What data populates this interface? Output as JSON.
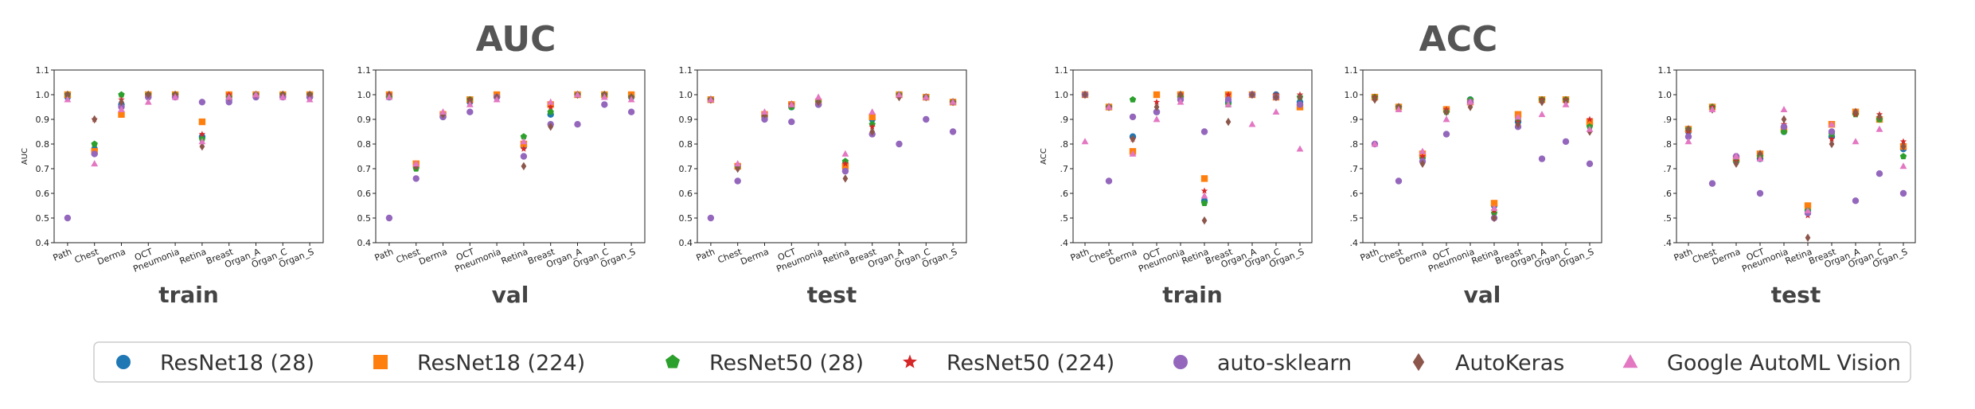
{
  "group_titles": [
    "AUC",
    "ACC"
  ],
  "datasets": [
    "Path",
    "Chest",
    "Derma",
    "OCT",
    "Pneumonia",
    "Retina",
    "Breast",
    "Organ_A",
    "Organ_C",
    "Organ_S"
  ],
  "models": [
    {
      "name": "ResNet18 (28)",
      "color": "#1f77b4",
      "marker": "circle"
    },
    {
      "name": "ResNet18 (224)",
      "color": "#ff7f0e",
      "marker": "square"
    },
    {
      "name": "ResNet50 (28)",
      "color": "#2ca02c",
      "marker": "pentagon"
    },
    {
      "name": "ResNet50 (224)",
      "color": "#d62728",
      "marker": "star"
    },
    {
      "name": "auto-sklearn",
      "color": "#9467bd",
      "marker": "circle"
    },
    {
      "name": "AutoKeras",
      "color": "#8c564b",
      "marker": "diamond"
    },
    {
      "name": "Google AutoML Vision",
      "color": "#e377c2",
      "marker": "triangle"
    }
  ],
  "chart_data": [
    {
      "type": "scatter",
      "group": "AUC",
      "title": "train",
      "ylabel": "AUC",
      "ylim": [
        0.4,
        1.1
      ],
      "yticks": [
        "0.4",
        "0.5",
        "0.6",
        "0.7",
        "0.8",
        "0.9",
        "1.0",
        "1.1"
      ],
      "series": [
        {
          "name": "ResNet18 (28)",
          "values": [
            0.99,
            0.78,
            0.96,
            1.0,
            1.0,
            0.83,
            0.98,
            1.0,
            1.0,
            0.99
          ]
        },
        {
          "name": "ResNet18 (224)",
          "values": [
            1.0,
            0.77,
            0.92,
            1.0,
            1.0,
            0.89,
            1.0,
            1.0,
            1.0,
            1.0
          ]
        },
        {
          "name": "ResNet50 (28)",
          "values": [
            1.0,
            0.8,
            1.0,
            1.0,
            1.0,
            0.82,
            0.99,
            1.0,
            1.0,
            1.0
          ]
        },
        {
          "name": "ResNet50 (224)",
          "values": [
            1.0,
            0.9,
            0.98,
            1.0,
            1.0,
            0.84,
            1.0,
            1.0,
            1.0,
            1.0
          ]
        },
        {
          "name": "auto-sklearn",
          "values": [
            0.5,
            0.76,
            0.95,
            0.99,
            0.99,
            0.97,
            0.97,
            0.99,
            0.99,
            0.99
          ]
        },
        {
          "name": "AutoKeras",
          "values": [
            1.0,
            0.9,
            0.97,
            1.0,
            1.0,
            0.79,
            0.99,
            1.0,
            1.0,
            1.0
          ]
        },
        {
          "name": "Google AutoML Vision",
          "values": [
            0.98,
            0.72,
            0.94,
            0.97,
            0.99,
            0.81,
            0.99,
            1.0,
            0.99,
            0.98
          ]
        }
      ]
    },
    {
      "type": "scatter",
      "group": "AUC",
      "title": "val",
      "ylabel": "",
      "ylim": [
        0.4,
        1.1
      ],
      "yticks": [
        "0.4",
        "0.5",
        "0.6",
        "0.7",
        "0.8",
        "0.9",
        "1.0",
        "1.1"
      ],
      "series": [
        {
          "name": "ResNet18 (28)",
          "values": [
            0.99,
            0.71,
            0.91,
            0.97,
            0.99,
            0.79,
            0.92,
            1.0,
            1.0,
            0.99
          ]
        },
        {
          "name": "ResNet18 (224)",
          "values": [
            1.0,
            0.72,
            0.92,
            0.98,
            1.0,
            0.8,
            0.96,
            1.0,
            1.0,
            1.0
          ]
        },
        {
          "name": "ResNet50 (28)",
          "values": [
            0.99,
            0.7,
            0.92,
            0.98,
            0.99,
            0.83,
            0.93,
            1.0,
            1.0,
            0.99
          ]
        },
        {
          "name": "ResNet50 (224)",
          "values": [
            1.0,
            0.71,
            0.91,
            0.98,
            0.99,
            0.78,
            0.95,
            1.0,
            1.0,
            0.99
          ]
        },
        {
          "name": "auto-sklearn",
          "values": [
            0.5,
            0.66,
            0.91,
            0.93,
            0.99,
            0.75,
            0.88,
            0.88,
            0.96,
            0.93
          ]
        },
        {
          "name": "AutoKeras",
          "values": [
            1.0,
            0.71,
            0.92,
            0.97,
            0.99,
            0.71,
            0.87,
            1.0,
            1.0,
            0.99
          ]
        },
        {
          "name": "Google AutoML Vision",
          "values": [
            0.99,
            0.72,
            0.93,
            0.96,
            0.98,
            0.81,
            0.97,
            1.0,
            0.99,
            0.98
          ]
        }
      ]
    },
    {
      "type": "scatter",
      "group": "AUC",
      "title": "test",
      "ylabel": "",
      "ylim": [
        0.4,
        1.1
      ],
      "yticks": [
        "0.4",
        "0.5",
        "0.6",
        "0.7",
        "0.8",
        "0.9",
        "1.0",
        "1.1"
      ],
      "series": [
        {
          "name": "ResNet18 (28)",
          "values": [
            0.98,
            0.71,
            0.91,
            0.95,
            0.96,
            0.72,
            0.9,
            1.0,
            0.99,
            0.97
          ]
        },
        {
          "name": "ResNet18 (224)",
          "values": [
            0.98,
            0.71,
            0.92,
            0.96,
            0.97,
            0.71,
            0.91,
            1.0,
            0.99,
            0.97
          ]
        },
        {
          "name": "ResNet50 (28)",
          "values": [
            0.98,
            0.71,
            0.91,
            0.95,
            0.97,
            0.73,
            0.88,
            1.0,
            0.99,
            0.97
          ]
        },
        {
          "name": "ResNet50 (224)",
          "values": [
            0.98,
            0.71,
            0.91,
            0.96,
            0.98,
            0.72,
            0.87,
            1.0,
            0.99,
            0.97
          ]
        },
        {
          "name": "auto-sklearn",
          "values": [
            0.5,
            0.65,
            0.9,
            0.89,
            0.96,
            0.69,
            0.84,
            0.8,
            0.9,
            0.85
          ]
        },
        {
          "name": "AutoKeras",
          "values": [
            0.98,
            0.7,
            0.92,
            0.96,
            0.97,
            0.66,
            0.85,
            0.99,
            0.99,
            0.97
          ]
        },
        {
          "name": "Google AutoML Vision",
          "values": [
            0.98,
            0.72,
            0.93,
            0.96,
            0.99,
            0.76,
            0.93,
            1.0,
            0.99,
            0.97
          ]
        }
      ]
    },
    {
      "type": "scatter",
      "group": "ACC",
      "title": "train",
      "ylabel": "ACC",
      "ylim": [
        0.4,
        1.1
      ],
      "yticks": [
        ".4",
        ".5",
        ".6",
        ".7",
        ".8",
        ".9",
        "1.0",
        "1.1"
      ],
      "series": [
        {
          "name": "ResNet18 (28)",
          "values": [
            1.0,
            0.95,
            0.83,
            0.93,
            0.99,
            0.57,
            0.97,
            1.0,
            1.0,
            0.97
          ]
        },
        {
          "name": "ResNet18 (224)",
          "values": [
            1.0,
            0.95,
            0.77,
            1.0,
            1.0,
            0.66,
            1.0,
            1.0,
            0.99,
            0.95
          ]
        },
        {
          "name": "ResNet50 (28)",
          "values": [
            1.0,
            0.95,
            0.98,
            0.93,
            0.99,
            0.56,
            0.96,
            1.0,
            0.99,
            0.99
          ]
        },
        {
          "name": "ResNet50 (224)",
          "values": [
            1.0,
            0.95,
            0.82,
            0.97,
            1.0,
            0.61,
            1.0,
            1.0,
            1.0,
            1.0
          ]
        },
        {
          "name": "auto-sklearn",
          "values": [
            1.0,
            0.65,
            0.91,
            0.93,
            0.98,
            0.85,
            0.98,
            1.0,
            0.99,
            0.96
          ]
        },
        {
          "name": "AutoKeras",
          "values": [
            1.0,
            0.95,
            0.82,
            0.95,
            1.0,
            0.49,
            0.89,
            1.0,
            0.99,
            0.99
          ]
        },
        {
          "name": "Google AutoML Vision",
          "values": [
            0.81,
            0.95,
            0.76,
            0.9,
            0.97,
            0.59,
            0.96,
            0.88,
            0.93,
            0.78
          ]
        }
      ]
    },
    {
      "type": "scatter",
      "group": "ACC",
      "title": "val",
      "ylabel": "",
      "ylim": [
        0.4,
        1.1
      ],
      "yticks": [
        ".4",
        ".5",
        ".6",
        ".7",
        ".8",
        ".9",
        "1.0",
        "1.1"
      ],
      "series": [
        {
          "name": "ResNet18 (28)",
          "values": [
            0.99,
            0.95,
            0.75,
            0.94,
            0.98,
            0.55,
            0.89,
            0.98,
            0.98,
            0.88
          ]
        },
        {
          "name": "ResNet18 (224)",
          "values": [
            0.99,
            0.95,
            0.76,
            0.94,
            0.97,
            0.56,
            0.92,
            0.98,
            0.98,
            0.89
          ]
        },
        {
          "name": "ResNet50 (28)",
          "values": [
            0.99,
            0.95,
            0.74,
            0.93,
            0.98,
            0.52,
            0.9,
            0.98,
            0.98,
            0.87
          ]
        },
        {
          "name": "ResNet50 (224)",
          "values": [
            0.99,
            0.95,
            0.75,
            0.94,
            0.96,
            0.53,
            0.89,
            0.98,
            0.98,
            0.9
          ]
        },
        {
          "name": "auto-sklearn",
          "values": [
            0.8,
            0.65,
            0.73,
            0.84,
            0.97,
            0.5,
            0.87,
            0.74,
            0.81,
            0.72
          ]
        },
        {
          "name": "AutoKeras",
          "values": [
            0.98,
            0.95,
            0.72,
            0.93,
            0.95,
            0.5,
            0.88,
            0.97,
            0.97,
            0.85
          ]
        },
        {
          "name": "Google AutoML Vision",
          "values": [
            0.8,
            0.94,
            0.77,
            0.9,
            0.97,
            0.54,
            0.91,
            0.92,
            0.96,
            0.86
          ]
        }
      ]
    },
    {
      "type": "scatter",
      "group": "ACC",
      "title": "test",
      "ylabel": "",
      "ylim": [
        0.4,
        1.1
      ],
      "yticks": [
        ".4",
        ".5",
        ".6",
        ".7",
        ".8",
        ".9",
        "1.0",
        "1.1"
      ],
      "series": [
        {
          "name": "ResNet18 (28)",
          "values": [
            0.85,
            0.95,
            0.73,
            0.74,
            0.85,
            0.53,
            0.83,
            0.93,
            0.9,
            0.78
          ]
        },
        {
          "name": "ResNet18 (224)",
          "values": [
            0.86,
            0.95,
            0.74,
            0.76,
            0.86,
            0.55,
            0.88,
            0.93,
            0.9,
            0.79
          ]
        },
        {
          "name": "ResNet50 (28)",
          "values": [
            0.86,
            0.95,
            0.73,
            0.75,
            0.85,
            0.53,
            0.84,
            0.92,
            0.9,
            0.75
          ]
        },
        {
          "name": "ResNet50 (224)",
          "values": [
            0.85,
            0.95,
            0.73,
            0.74,
            0.88,
            0.51,
            0.82,
            0.92,
            0.92,
            0.81
          ]
        },
        {
          "name": "auto-sklearn",
          "values": [
            0.83,
            0.64,
            0.75,
            0.6,
            0.87,
            0.52,
            0.85,
            0.57,
            0.68,
            0.6
          ]
        },
        {
          "name": "AutoKeras",
          "values": [
            0.86,
            0.94,
            0.72,
            0.76,
            0.9,
            0.42,
            0.8,
            0.93,
            0.91,
            0.79
          ]
        },
        {
          "name": "Google AutoML Vision",
          "values": [
            0.81,
            0.94,
            0.75,
            0.74,
            0.94,
            0.53,
            0.88,
            0.81,
            0.86,
            0.71
          ]
        }
      ]
    }
  ]
}
